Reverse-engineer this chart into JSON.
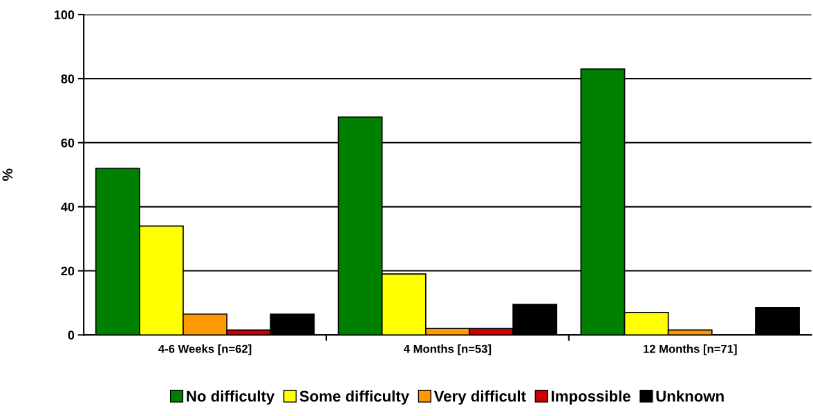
{
  "chart_data": {
    "type": "bar",
    "ylabel": "%",
    "categories": [
      "4-6 Weeks [n=62]",
      "4 Months [n=53]",
      "12 Months [n=71]"
    ],
    "series": [
      {
        "name": "No difficulty",
        "color": "#008000",
        "values": [
          52,
          68,
          83
        ]
      },
      {
        "name": "Some difficulty",
        "color": "#ffff00",
        "values": [
          34,
          19,
          7
        ]
      },
      {
        "name": "Very difficult",
        "color": "#ff9900",
        "values": [
          6.5,
          2,
          1.5
        ]
      },
      {
        "name": "Impossible",
        "color": "#cc0000",
        "values": [
          1.5,
          2,
          0
        ]
      },
      {
        "name": "Unknown",
        "color": "#000000",
        "values": [
          6.5,
          9.5,
          8.5
        ]
      }
    ],
    "ylim": [
      0,
      100
    ],
    "yticks": [
      0,
      20,
      40,
      60,
      80,
      100
    ],
    "grid": "y",
    "legend": "bottom"
  }
}
